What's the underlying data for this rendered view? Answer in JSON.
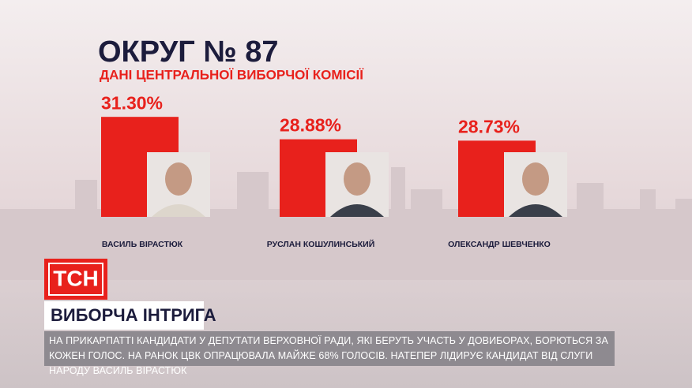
{
  "chart_data": {
    "type": "bar",
    "title": "ОКРУГ № 87",
    "subtitle": "ДАНІ ЦЕНТРАЛЬНОЇ ВИБОРЧОЇ КОМІСІЇ",
    "categories": [
      "ВАСИЛЬ ВІРАСТЮК",
      "РУСЛАН КОШУЛИНСЬКИЙ",
      "ОЛЕКСАНДР ШЕВЧЕНКО"
    ],
    "values": [
      31.3,
      28.88,
      28.73
    ],
    "value_labels": [
      "31.30%",
      "28.88%",
      "28.73%"
    ],
    "color": "#e8211c",
    "ylim": [
      20.5,
      33.7
    ]
  },
  "logo": "ТСН",
  "headline": "ВИБОРЧА ІНТРИГА",
  "ticker": "НА ПРИКАРПАТТІ КАНДИДАТИ У ДЕПУТАТИ ВЕРХОВНОЇ РАДИ, ЯКІ БЕРУТЬ УЧАСТЬ У ДОВИБОРАХ, БОРЮТЬСЯ ЗА КОЖЕН ГОЛОС. НА РАНОК ЦВК ОПРАЦЮВАЛА МАЙЖЕ 68% ГОЛОСІВ. НАТЕПЕР ЛІДИРУЄ КАНДИДАТ ВІД СЛУГИ НАРОДУ ВАСИЛЬ ВІРАСТЮК"
}
